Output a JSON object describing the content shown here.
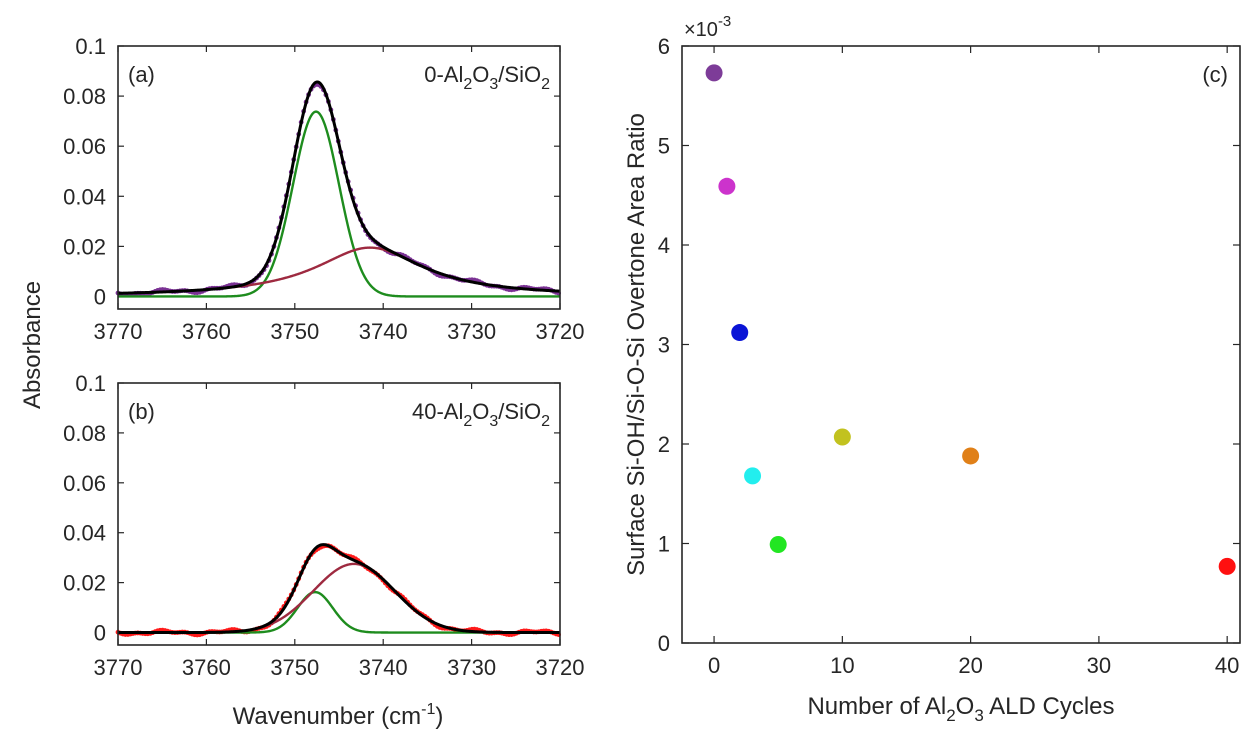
{
  "chart_data": [
    {
      "type": "line",
      "panel_label": "(a)",
      "annotation": {
        "parts": [
          {
            "t": "0-Al",
            "sub": false
          },
          {
            "t": "2",
            "sub": true
          },
          {
            "t": "O",
            "sub": false
          },
          {
            "t": "3",
            "sub": true
          },
          {
            "t": "/SiO",
            "sub": false
          },
          {
            "t": "2",
            "sub": true
          }
        ]
      },
      "xlim": [
        3770,
        3720
      ],
      "x_reversed": true,
      "ylim": [
        -0.005,
        0.1
      ],
      "x_ticks": [
        3770,
        3760,
        3750,
        3740,
        3730,
        3720
      ],
      "y_ticks": [
        0,
        0.02,
        0.04,
        0.06,
        0.08,
        0.1
      ],
      "y_tick_labels": [
        "0",
        "0.02",
        "0.04",
        "0.06",
        "0.08",
        "0.1"
      ],
      "measured_color": "#7b3294",
      "series": [
        {
          "peaks": [
            [
              0.0738,
              3747.6,
              2.6,
              0.0
            ],
            [
              0.0195,
              3741.5,
              7.5,
              1.0
            ]
          ],
          "color": "#1e8c1e"
        },
        {
          "peaks": [
            [
              0.0195,
              3741.5,
              7.5,
              1.0
            ]
          ],
          "color": "#9e2a40"
        },
        {
          "peaks": [
            [
              0.0738,
              3747.6,
              2.6,
              0.0
            ],
            [
              0.0195,
              3741.5,
              7.5,
              1.0
            ]
          ],
          "color": "#000000"
        }
      ],
      "note": "each series draws the sum of its listed peak components [amplitude, center, half-width, lorentzian fraction]; the first series draws only its first component"
    },
    {
      "type": "line",
      "panel_label": "(b)",
      "annotation": {
        "parts": [
          {
            "t": "40-Al",
            "sub": false
          },
          {
            "t": "2",
            "sub": true
          },
          {
            "t": "O",
            "sub": false
          },
          {
            "t": "3",
            "sub": true
          },
          {
            "t": "/SiO",
            "sub": false
          },
          {
            "t": "2",
            "sub": true
          }
        ]
      },
      "xlim": [
        3770,
        3720
      ],
      "x_reversed": true,
      "ylim": [
        -0.005,
        0.1
      ],
      "x_ticks": [
        3770,
        3760,
        3750,
        3740,
        3730,
        3720
      ],
      "y_ticks": [
        0,
        0.02,
        0.04,
        0.06,
        0.08,
        0.1
      ],
      "y_tick_labels": [
        "0",
        "0.02",
        "0.04",
        "0.06",
        "0.08",
        "0.1"
      ],
      "measured_color": "#ff1a1a",
      "series": [
        {
          "peaks": [
            [
              0.0162,
              3747.7,
              2.0,
              0.0
            ],
            [
              0.0275,
              3743.3,
              4.6,
              0.0
            ]
          ],
          "color": "#1e8c1e"
        },
        {
          "peaks": [
            [
              0.0275,
              3743.3,
              4.6,
              0.0
            ]
          ],
          "color": "#9e2a40"
        },
        {
          "peaks": [
            [
              0.0162,
              3747.7,
              2.0,
              0.0
            ],
            [
              0.0275,
              3743.3,
              4.6,
              0.0
            ]
          ],
          "color": "#000000"
        }
      ]
    },
    {
      "type": "scatter",
      "panel_label": "(c)",
      "xlim": [
        -2.5,
        41
      ],
      "ylim": [
        0,
        6
      ],
      "y_multiplier": "×10",
      "y_multiplier_exp": "-3",
      "x_ticks": [
        0,
        10,
        20,
        30,
        40
      ],
      "y_ticks": [
        0,
        1,
        2,
        3,
        4,
        5,
        6
      ],
      "ylabel": "Surface Si-OH/Si-O-Si Overtone Area Ratio",
      "xlabel_parts": [
        {
          "t": "Number of Al",
          "sub": false
        },
        {
          "t": "2",
          "sub": true
        },
        {
          "t": "O",
          "sub": false
        },
        {
          "t": "3",
          "sub": true
        },
        {
          "t": " ALD Cycles",
          "sub": false
        }
      ],
      "points": [
        {
          "x": 0,
          "y": 5.73,
          "color": "#7d3c98"
        },
        {
          "x": 1,
          "y": 4.59,
          "color": "#cc33cc"
        },
        {
          "x": 2,
          "y": 3.12,
          "color": "#0a14d6"
        },
        {
          "x": 3,
          "y": 1.68,
          "color": "#22eeee"
        },
        {
          "x": 5,
          "y": 0.99,
          "color": "#22e622"
        },
        {
          "x": 10,
          "y": 2.07,
          "color": "#c2c21f"
        },
        {
          "x": 20,
          "y": 1.88,
          "color": "#e08018"
        },
        {
          "x": 40,
          "y": 0.77,
          "color": "#ff1010"
        }
      ]
    }
  ],
  "shared": {
    "ylabel_ab": "Absorbance",
    "xlabel_ab_pre": "Wavenumber (cm",
    "xlabel_ab_sup": "-1",
    "xlabel_ab_post": ")"
  }
}
